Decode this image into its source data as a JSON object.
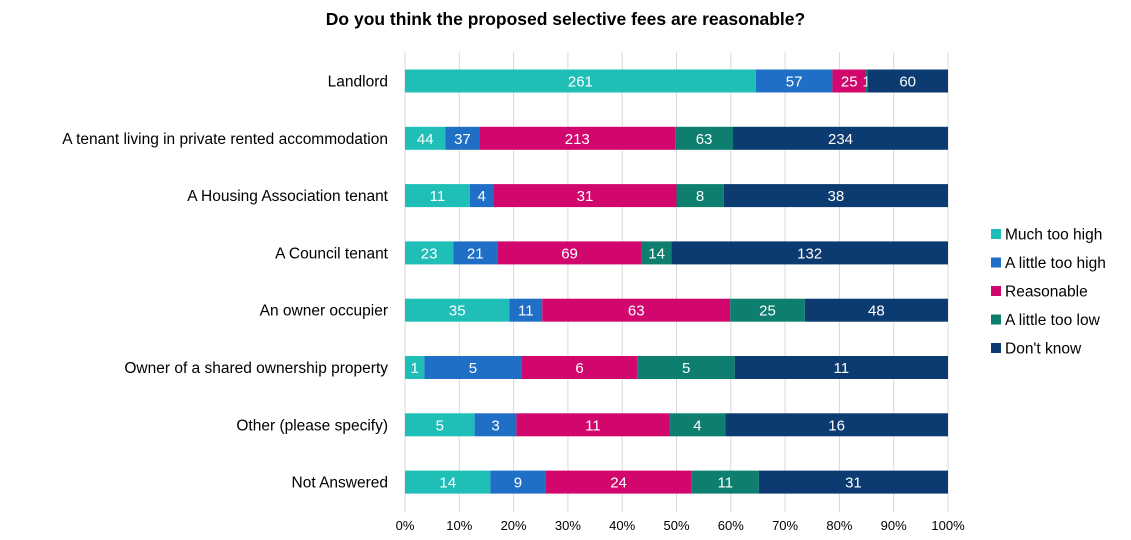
{
  "chart_data": {
    "type": "bar",
    "orientation": "horizontal",
    "stacked": "percent",
    "title": "Do you think the proposed selective fees are reasonable?",
    "categories": [
      "Landlord",
      "A tenant living in private rented accommodation",
      "A Housing Association tenant",
      "A Council tenant",
      "An owner occupier",
      "Owner of a shared ownership property",
      "Other (please specify)",
      "Not Answered"
    ],
    "series": [
      {
        "name": "Much too high",
        "color": "#1fbfb8",
        "values": [
          261,
          44,
          11,
          23,
          35,
          1,
          5,
          14
        ]
      },
      {
        "name": "A little too high",
        "color": "#1f6fc6",
        "values": [
          57,
          37,
          4,
          21,
          11,
          5,
          3,
          9
        ]
      },
      {
        "name": "Reasonable",
        "color": "#d1076e",
        "values": [
          25,
          213,
          31,
          69,
          63,
          6,
          11,
          24
        ]
      },
      {
        "name": "A little too low",
        "color": "#0e7f6e",
        "values": [
          1,
          63,
          8,
          14,
          25,
          5,
          4,
          11
        ]
      },
      {
        "name": "Don't know",
        "color": "#0b3b70",
        "values": [
          60,
          234,
          38,
          132,
          48,
          11,
          16,
          31
        ]
      }
    ],
    "x_ticks": [
      "0%",
      "10%",
      "20%",
      "30%",
      "40%",
      "50%",
      "60%",
      "70%",
      "80%",
      "90%",
      "100%"
    ],
    "xlim": [
      0,
      100
    ],
    "grid": true,
    "legend_position": "right",
    "label_color": "#ffffff",
    "gridline_color": "#d9d9d9"
  }
}
